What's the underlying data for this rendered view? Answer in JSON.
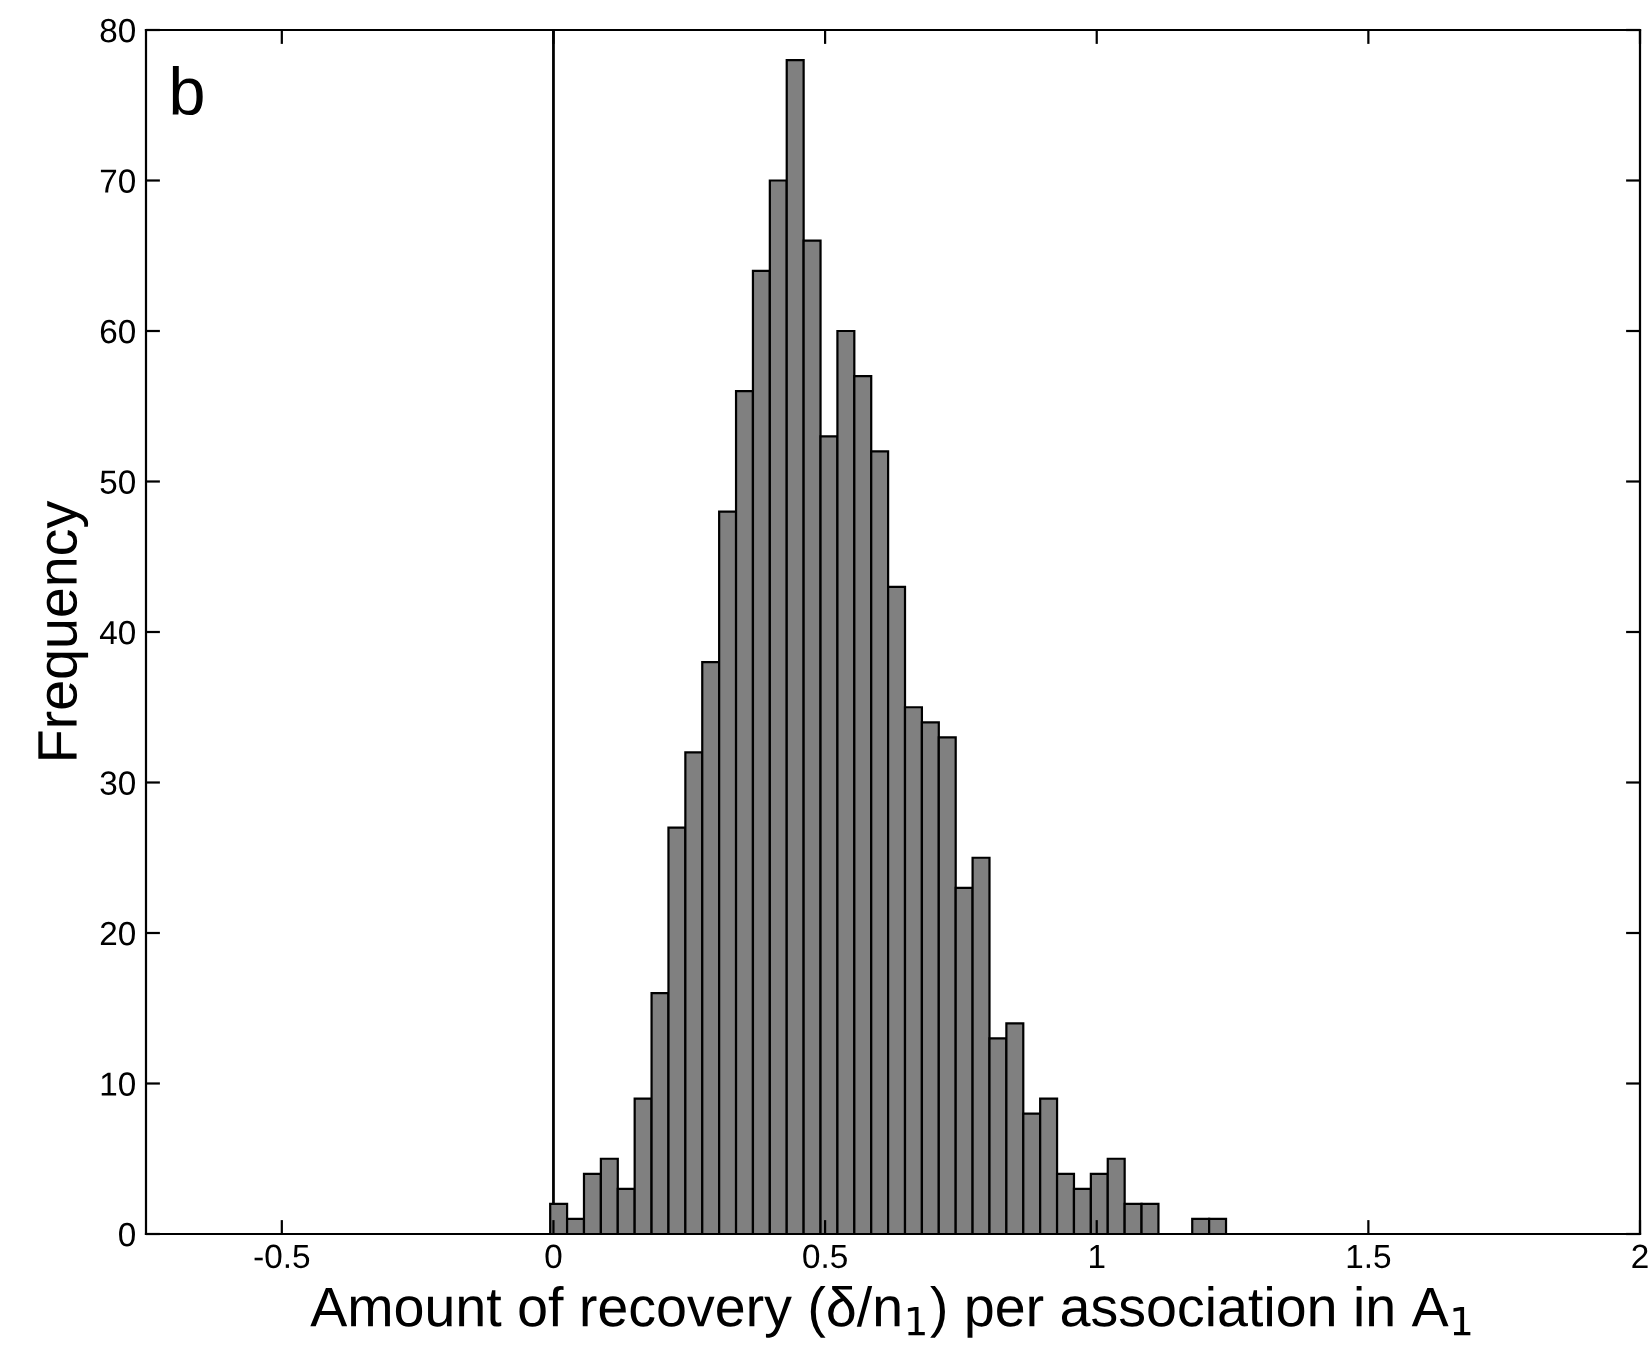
{
  "chart_data": {
    "type": "histogram",
    "xlabel": "Amount of recovery (δ/n$_{1}$) per association in A$_{1}$",
    "ylabel": "Frequency",
    "annotations": [
      "b"
    ],
    "bins": [
      -0.006,
      0.0251,
      0.0562,
      0.0873,
      0.1184,
      0.1495,
      0.1806,
      0.2117,
      0.2428,
      0.2739,
      0.305,
      0.3361,
      0.3672,
      0.3983,
      0.4294,
      0.4605,
      0.4916,
      0.5227,
      0.5538,
      0.5849,
      0.616,
      0.6471,
      0.6782,
      0.7093,
      0.7404,
      0.7715,
      0.8026,
      0.8337,
      0.8648,
      0.8959,
      0.927,
      0.9581,
      0.9892,
      1.0203,
      1.0514,
      1.0825,
      1.1136,
      1.1447,
      1.1758,
      1.2069,
      1.238
    ],
    "values": [
      2,
      1,
      4,
      5,
      3,
      9,
      16,
      27,
      32,
      38,
      48,
      56,
      64,
      70,
      78,
      66,
      53,
      60,
      57,
      52,
      43,
      35,
      34,
      33,
      23,
      25,
      13,
      14,
      8,
      9,
      4,
      3,
      4,
      5,
      2,
      2,
      0,
      0,
      1,
      1
    ],
    "color": "#808080",
    "xlim": [
      -0.75,
      2
    ],
    "xticks": [
      -0.5,
      0,
      0.5,
      1,
      1.5,
      2
    ],
    "ylim": [
      0,
      80
    ],
    "yticks": [
      0,
      10,
      20,
      30,
      40,
      50,
      60,
      70,
      80
    ],
    "ref_lines": [
      {
        "axis": "x",
        "value": 0,
        "color": "#000000"
      }
    ],
    "grid": false
  }
}
